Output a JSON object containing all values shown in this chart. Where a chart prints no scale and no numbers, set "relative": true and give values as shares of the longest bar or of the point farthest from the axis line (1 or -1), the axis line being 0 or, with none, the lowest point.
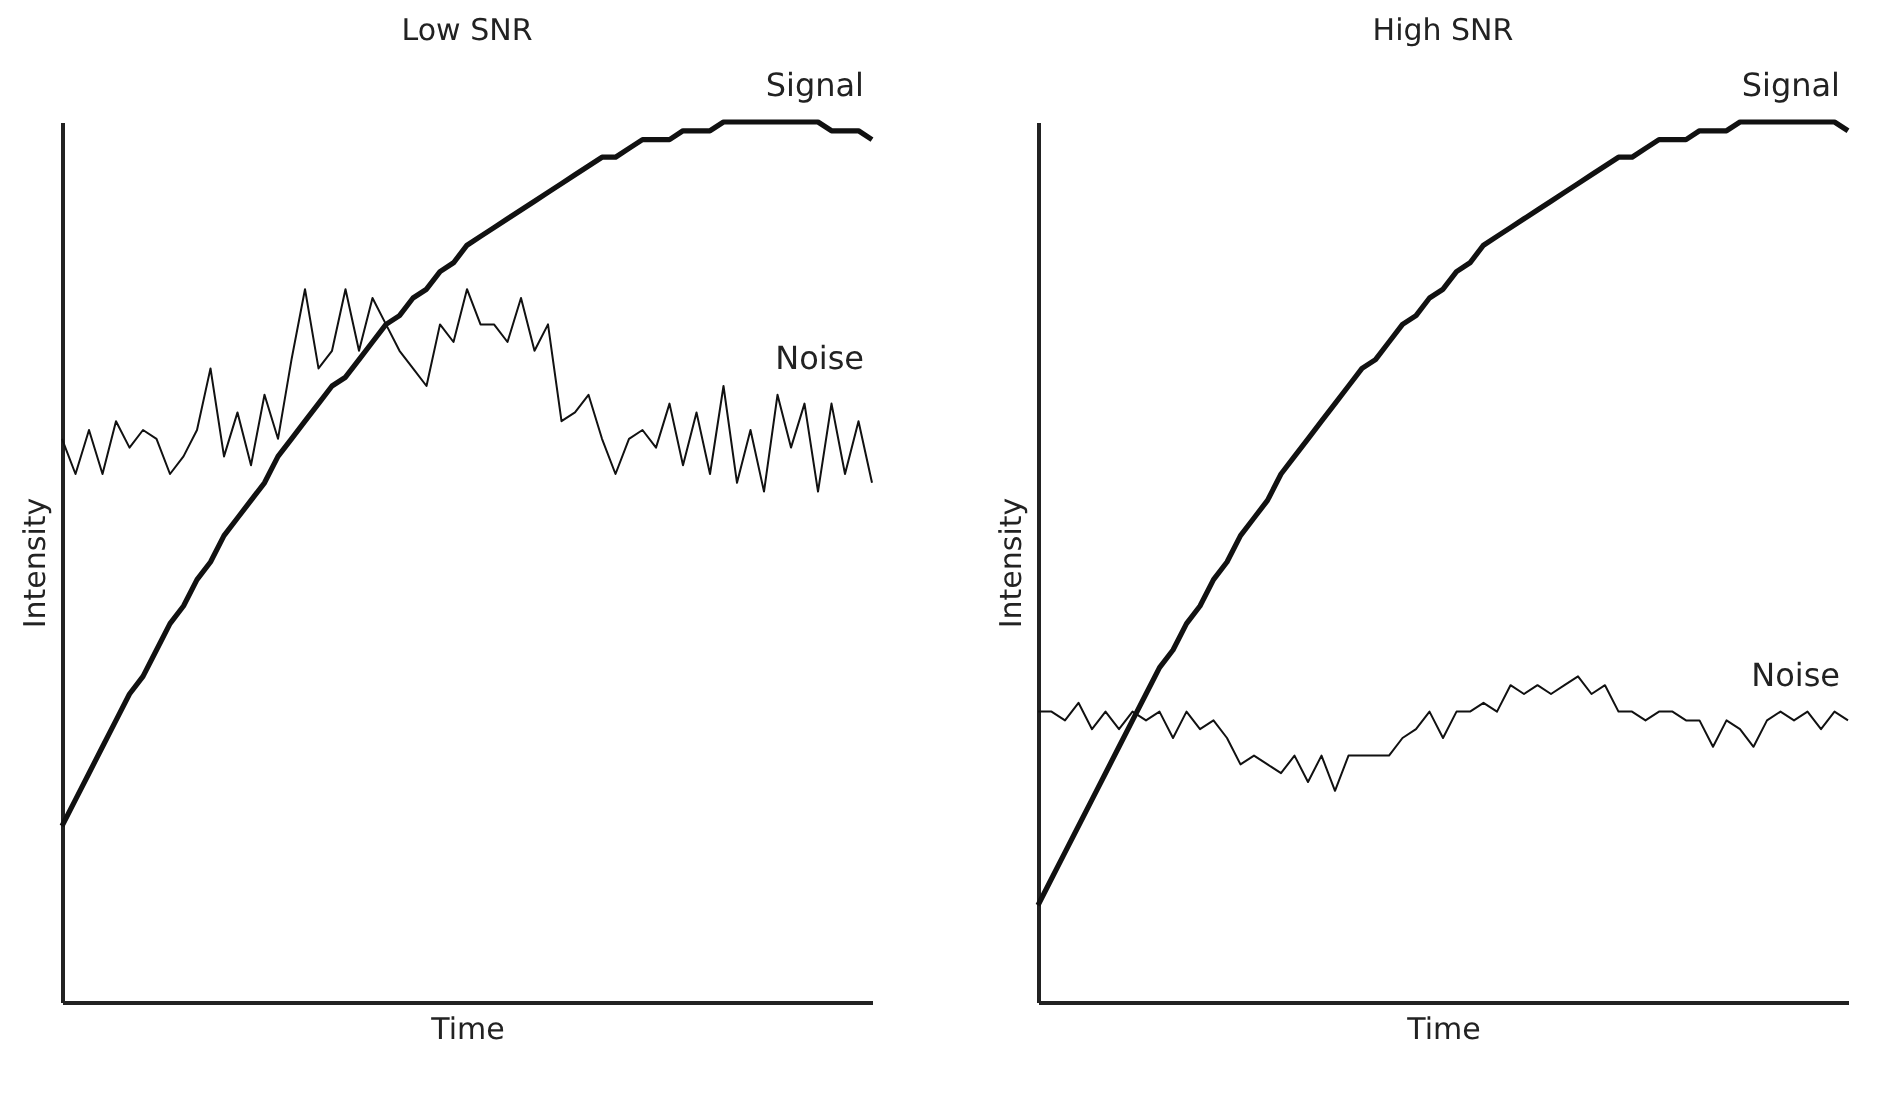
{
  "chart_data": [
    {
      "type": "line",
      "title": "Low SNR",
      "xlabel": "Time",
      "ylabel": "Intensity",
      "relative": true,
      "tick_labels": false,
      "marker": "none",
      "categories": [
        null,
        null,
        null,
        null,
        null,
        null,
        null,
        null,
        null,
        null,
        null,
        null,
        null,
        null,
        null,
        null,
        null,
        null,
        null,
        null,
        null,
        null,
        null,
        null,
        null,
        null,
        null,
        null,
        null,
        null,
        null,
        null,
        null,
        null,
        null,
        null,
        null,
        null,
        null,
        null,
        null,
        null,
        null,
        null,
        null,
        null,
        null,
        null,
        null,
        null,
        null,
        null,
        null,
        null,
        null,
        null,
        null,
        null,
        null,
        null,
        null
      ],
      "series": [
        {
          "name": "Signal",
          "color": "#111111",
          "values": [
            0.2,
            0.23,
            0.26,
            0.29,
            0.32,
            0.35,
            0.37,
            0.4,
            0.43,
            0.45,
            0.48,
            0.5,
            0.53,
            0.55,
            0.57,
            0.59,
            0.62,
            0.64,
            0.66,
            0.68,
            0.7,
            0.71,
            0.73,
            0.75,
            0.77,
            0.78,
            0.8,
            0.81,
            0.83,
            0.84,
            0.86,
            0.87,
            0.88,
            0.89,
            0.9,
            0.91,
            0.92,
            0.93,
            0.94,
            0.95,
            0.96,
            0.96,
            0.97,
            0.98,
            0.98,
            0.98,
            0.99,
            0.99,
            0.99,
            1.0,
            1.0,
            1.0,
            1.0,
            1.0,
            1.0,
            1.0,
            1.0,
            0.99,
            0.99,
            0.99,
            0.98
          ]
        },
        {
          "name": "Noise",
          "color": "#111111",
          "values": [
            0.64,
            0.6,
            0.65,
            0.6,
            0.66,
            0.63,
            0.65,
            0.64,
            0.6,
            0.62,
            0.65,
            0.72,
            0.62,
            0.67,
            0.61,
            0.69,
            0.64,
            0.73,
            0.81,
            0.72,
            0.74,
            0.81,
            0.74,
            0.8,
            0.77,
            0.74,
            0.72,
            0.7,
            0.77,
            0.75,
            0.81,
            0.77,
            0.77,
            0.75,
            0.8,
            0.74,
            0.77,
            0.66,
            0.67,
            0.69,
            0.64,
            0.6,
            0.64,
            0.65,
            0.63,
            0.68,
            0.61,
            0.67,
            0.6,
            0.7,
            0.59,
            0.65,
            0.58,
            0.69,
            0.63,
            0.68,
            0.58,
            0.68,
            0.6,
            0.66,
            0.59
          ]
        }
      ]
    },
    {
      "type": "line",
      "title": "High SNR",
      "xlabel": "Time",
      "ylabel": "Intensity",
      "relative": true,
      "tick_labels": false,
      "marker": "none",
      "categories": [
        null,
        null,
        null,
        null,
        null,
        null,
        null,
        null,
        null,
        null,
        null,
        null,
        null,
        null,
        null,
        null,
        null,
        null,
        null,
        null,
        null,
        null,
        null,
        null,
        null,
        null,
        null,
        null,
        null,
        null,
        null,
        null,
        null,
        null,
        null,
        null,
        null,
        null,
        null,
        null,
        null,
        null,
        null,
        null,
        null,
        null,
        null,
        null,
        null,
        null,
        null,
        null,
        null,
        null,
        null,
        null,
        null,
        null,
        null,
        null,
        null
      ],
      "series": [
        {
          "name": "Signal",
          "color": "#111111",
          "values": [
            0.11,
            0.14,
            0.17,
            0.2,
            0.23,
            0.26,
            0.29,
            0.32,
            0.35,
            0.38,
            0.4,
            0.43,
            0.45,
            0.48,
            0.5,
            0.53,
            0.55,
            0.57,
            0.6,
            0.62,
            0.64,
            0.66,
            0.68,
            0.7,
            0.72,
            0.73,
            0.75,
            0.77,
            0.78,
            0.8,
            0.81,
            0.83,
            0.84,
            0.86,
            0.87,
            0.88,
            0.89,
            0.9,
            0.91,
            0.92,
            0.93,
            0.94,
            0.95,
            0.96,
            0.96,
            0.97,
            0.98,
            0.98,
            0.98,
            0.99,
            0.99,
            0.99,
            1.0,
            1.0,
            1.0,
            1.0,
            1.0,
            1.0,
            1.0,
            1.0,
            0.99
          ]
        },
        {
          "name": "Noise",
          "color": "#111111",
          "values": [
            0.33,
            0.33,
            0.32,
            0.34,
            0.31,
            0.33,
            0.31,
            0.33,
            0.32,
            0.33,
            0.3,
            0.33,
            0.31,
            0.32,
            0.3,
            0.27,
            0.28,
            0.27,
            0.26,
            0.28,
            0.25,
            0.28,
            0.24,
            0.28,
            0.28,
            0.28,
            0.28,
            0.3,
            0.31,
            0.33,
            0.3,
            0.33,
            0.33,
            0.34,
            0.33,
            0.36,
            0.35,
            0.36,
            0.35,
            0.36,
            0.37,
            0.35,
            0.36,
            0.33,
            0.33,
            0.32,
            0.33,
            0.33,
            0.32,
            0.32,
            0.29,
            0.32,
            0.31,
            0.29,
            0.32,
            0.33,
            0.32,
            0.33,
            0.31,
            0.33,
            0.32
          ]
        }
      ]
    }
  ]
}
